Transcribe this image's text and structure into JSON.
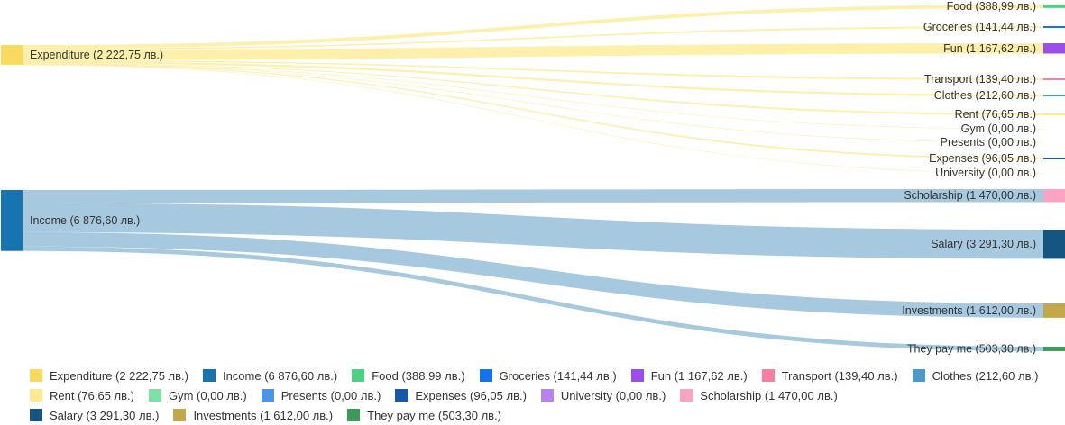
{
  "chart_data": {
    "type": "sankey",
    "nodes": [
      {
        "id": "expenditure",
        "label": "Expenditure (2 222,75 лв.)",
        "value": 2222.75,
        "color": "#fada5e"
      },
      {
        "id": "income",
        "label": "Income (6 876,60 лв.)",
        "value": 6876.6,
        "color": "#1874b0"
      },
      {
        "id": "food",
        "label": "Food (388,99 лв.)",
        "value": 388.99,
        "color": "#4dcf84"
      },
      {
        "id": "groceries",
        "label": "Groceries (141,44 лв.)",
        "value": 141.44,
        "color": "#1673e8"
      },
      {
        "id": "fun",
        "label": "Fun (1 167,62 лв.)",
        "value": 1167.62,
        "color": "#9b4fe6"
      },
      {
        "id": "transport",
        "label": "Transport (139,40 лв.)",
        "value": 139.4,
        "color": "#f77fa4"
      },
      {
        "id": "clothes",
        "label": "Clothes (212,60 лв.)",
        "value": 212.6,
        "color": "#4c98c8"
      },
      {
        "id": "rent",
        "label": "Rent (76,65 лв.)",
        "value": 76.65,
        "color": "#fde98f"
      },
      {
        "id": "gym",
        "label": "Gym (0,00 лв.)",
        "value": 0.0,
        "color": "#7de0a6"
      },
      {
        "id": "presents",
        "label": "Presents (0,00 лв.)",
        "value": 0.0,
        "color": "#4995ea"
      },
      {
        "id": "expenses",
        "label": "Expenses (96,05 лв.)",
        "value": 96.05,
        "color": "#1459a8"
      },
      {
        "id": "university",
        "label": "University (0,00 лв.)",
        "value": 0.0,
        "color": "#b980f0"
      },
      {
        "id": "scholarship",
        "label": "Scholarship (1 470,00 лв.)",
        "value": 1470.0,
        "color": "#fca3c3"
      },
      {
        "id": "salary",
        "label": "Salary (3 291,30 лв.)",
        "value": 3291.3,
        "color": "#145582"
      },
      {
        "id": "investments",
        "label": "Investments (1 612,00 лв.)",
        "value": 1612.0,
        "color": "#c2a84a"
      },
      {
        "id": "they_pay_me",
        "label": "They pay me (503,30 лв.)",
        "value": 503.3,
        "color": "#3c9b5b"
      }
    ],
    "links": [
      {
        "source": "expenditure",
        "target": "food",
        "value": 388.99
      },
      {
        "source": "expenditure",
        "target": "groceries",
        "value": 141.44
      },
      {
        "source": "expenditure",
        "target": "fun",
        "value": 1167.62
      },
      {
        "source": "expenditure",
        "target": "transport",
        "value": 139.4
      },
      {
        "source": "expenditure",
        "target": "clothes",
        "value": 212.6
      },
      {
        "source": "expenditure",
        "target": "rent",
        "value": 76.65
      },
      {
        "source": "expenditure",
        "target": "gym",
        "value": 0.0
      },
      {
        "source": "expenditure",
        "target": "presents",
        "value": 0.0
      },
      {
        "source": "expenditure",
        "target": "expenses",
        "value": 96.05
      },
      {
        "source": "expenditure",
        "target": "university",
        "value": 0.0
      },
      {
        "source": "income",
        "target": "scholarship",
        "value": 1470.0
      },
      {
        "source": "income",
        "target": "salary",
        "value": 3291.3
      },
      {
        "source": "income",
        "target": "investments",
        "value": 1612.0
      },
      {
        "source": "income",
        "target": "they_pay_me",
        "value": 503.3
      }
    ],
    "legend_position": "bottom"
  }
}
